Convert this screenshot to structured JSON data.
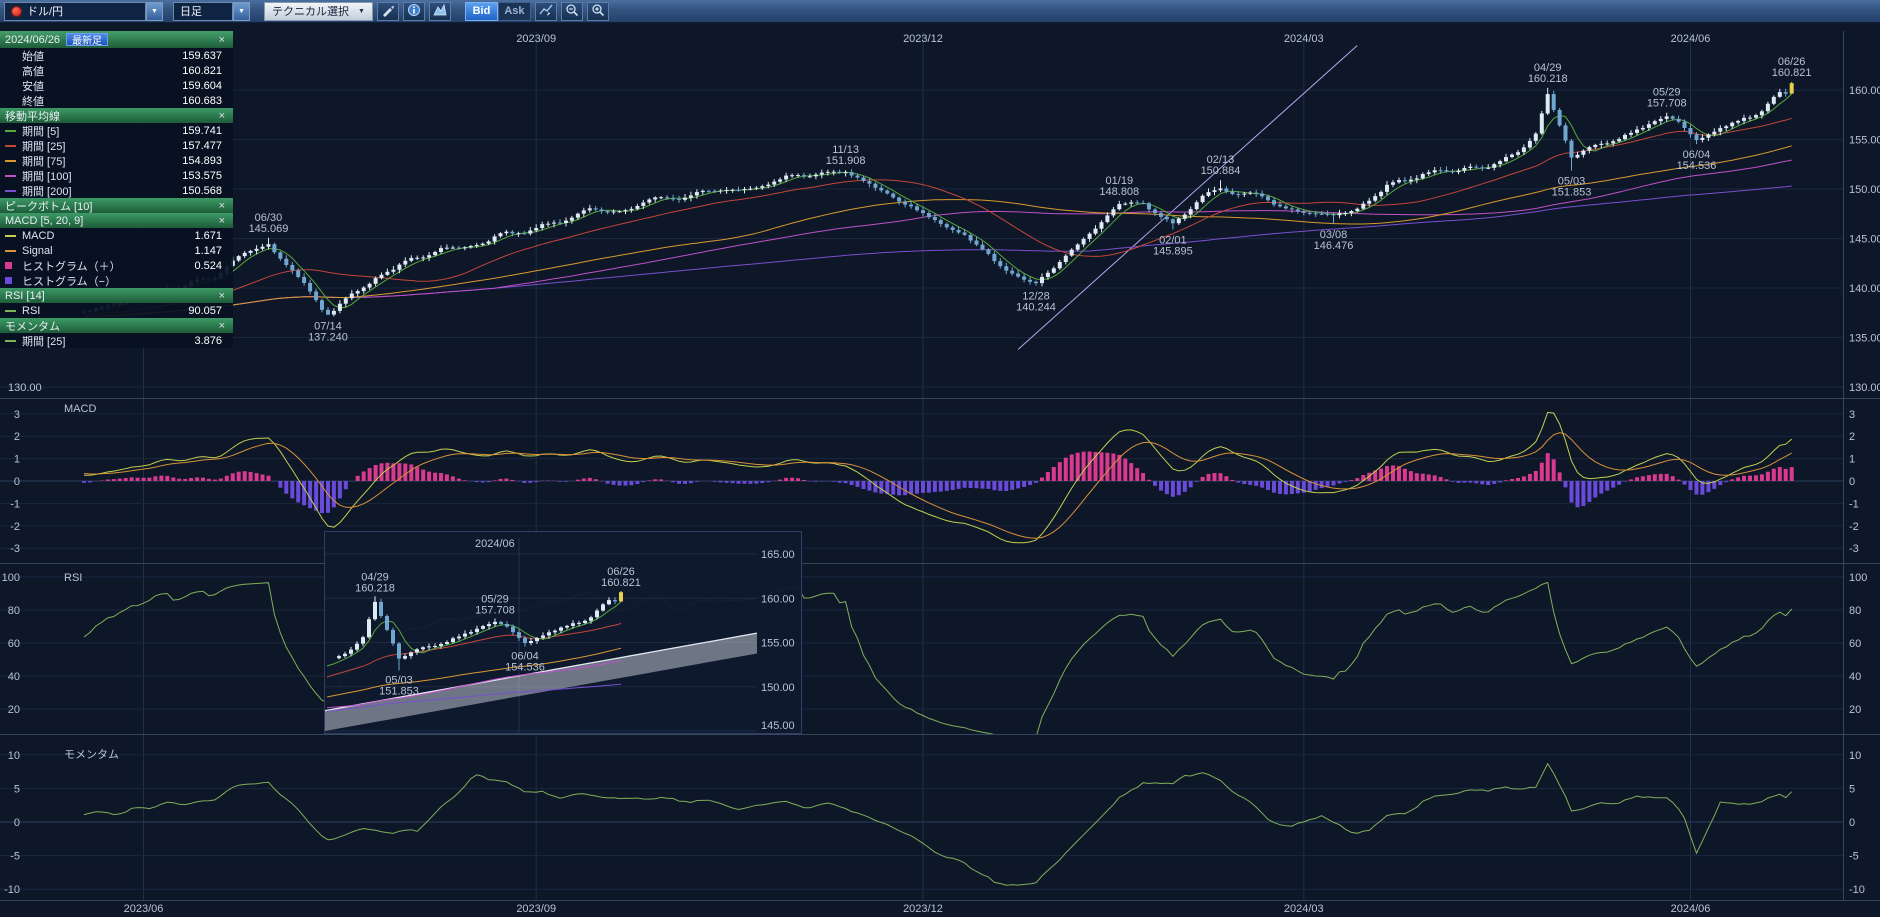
{
  "toolbar": {
    "pair": "ドル/円",
    "timeframe": "日足",
    "technical_select": "テクニカル選択",
    "bid": "Bid",
    "ask": "Ask",
    "caret": "▼",
    "icons": [
      "pencil-icon",
      "info-icon",
      "area-chart-icon",
      "line-chart-icon",
      "zoom-out-icon",
      "zoom-in-icon"
    ]
  },
  "indicator_panel": {
    "date": "2024/06/26",
    "badge": "最新足",
    "close_glyph": "×",
    "ohlc_rows": [
      {
        "label": "始値",
        "value": "159.637"
      },
      {
        "label": "高値",
        "value": "160.821"
      },
      {
        "label": "安値",
        "value": "159.604"
      },
      {
        "label": "終値",
        "value": "160.683"
      }
    ],
    "sections": [
      {
        "title": "移動平均線",
        "rows": [
          {
            "label": "期間 [5]",
            "value": "159.741",
            "color": "#55a83a"
          },
          {
            "label": "期間 [25]",
            "value": "157.477",
            "color": "#c4463a"
          },
          {
            "label": "期間 [75]",
            "value": "154.893",
            "color": "#d9992f"
          },
          {
            "label": "期間 [100]",
            "value": "153.575",
            "color": "#c050c8"
          },
          {
            "label": "期間 [200]",
            "value": "150.568",
            "color": "#7a4fd0"
          }
        ]
      },
      {
        "title": "ピークボトム [10]",
        "rows": []
      },
      {
        "title": "MACD [5, 20, 9]",
        "rows": [
          {
            "label": "MACD",
            "value": "1.671",
            "color": "#c3cf4e"
          },
          {
            "label": "Signal",
            "value": "1.147",
            "color": "#d9913a"
          },
          {
            "label": "ヒストグラム（＋）",
            "value": "0.524",
            "color": "#d93a8f",
            "swatch": "box"
          },
          {
            "label": "ヒストグラム（−）",
            "value": "",
            "color": "#6a4ad9",
            "swatch": "box"
          }
        ]
      },
      {
        "title": "RSI [14]",
        "rows": [
          {
            "label": "RSI",
            "value": "90.057",
            "color": "#7fb05a"
          }
        ]
      },
      {
        "title": "モメンタム",
        "rows": [
          {
            "label": "期間 [25]",
            "value": "3.876",
            "color": "#7fb05a"
          }
        ]
      }
    ]
  },
  "chart_data": {
    "type": "candlestick",
    "symbol": "ドル/円",
    "interval": "日足",
    "latest": {
      "date": "2024/06/26",
      "open": 159.637,
      "high": 160.821,
      "low": 159.604,
      "close": 160.683
    },
    "price_ticks": [
      160,
      155,
      150,
      145,
      140,
      135,
      130
    ],
    "left_price_label": "130.00",
    "months": [
      {
        "label": "2023/06",
        "i": 10,
        "show_top": false
      },
      {
        "label": "2023/09",
        "i": 76,
        "show_top": true
      },
      {
        "label": "2023/12",
        "i": 141,
        "show_top": true
      },
      {
        "label": "2024/03",
        "i": 205,
        "show_top": true
      },
      {
        "label": "2024/06",
        "i": 270,
        "show_top": true
      }
    ],
    "anchors": [
      [
        0,
        138.0
      ],
      [
        6,
        138.8
      ],
      [
        10,
        139.4
      ],
      [
        16,
        139.9
      ],
      [
        22,
        141.3
      ],
      [
        27,
        143.5
      ],
      [
        31,
        144.9
      ],
      [
        35,
        141.9
      ],
      [
        41,
        137.6
      ],
      [
        46,
        139.6
      ],
      [
        53,
        142.3
      ],
      [
        60,
        144.3
      ],
      [
        68,
        144.9
      ],
      [
        75,
        146.0
      ],
      [
        82,
        147.3
      ],
      [
        90,
        147.9
      ],
      [
        96,
        149.2
      ],
      [
        103,
        149.6
      ],
      [
        110,
        150.3
      ],
      [
        118,
        151.2
      ],
      [
        123,
        151.4
      ],
      [
        128,
        151.6
      ],
      [
        132,
        150.6
      ],
      [
        137,
        148.6
      ],
      [
        142,
        147.3
      ],
      [
        148,
        145.4
      ],
      [
        153,
        142.9
      ],
      [
        157,
        141.6
      ],
      [
        160,
        140.8
      ],
      [
        163,
        142.2
      ],
      [
        168,
        144.9
      ],
      [
        174,
        148.2
      ],
      [
        178,
        148.5
      ],
      [
        183,
        146.4
      ],
      [
        187,
        148.3
      ],
      [
        191,
        150.3
      ],
      [
        195,
        149.6
      ],
      [
        200,
        148.3
      ],
      [
        205,
        147.5
      ],
      [
        210,
        147.1
      ],
      [
        214,
        148.3
      ],
      [
        219,
        150.1
      ],
      [
        225,
        151.3
      ],
      [
        230,
        151.7
      ],
      [
        236,
        152.5
      ],
      [
        241,
        153.9
      ],
      [
        244,
        155.8
      ],
      [
        246,
        159.5
      ],
      [
        248,
        156.0
      ],
      [
        250,
        152.8
      ],
      [
        252,
        153.6
      ],
      [
        255,
        154.7
      ],
      [
        258,
        155.3
      ],
      [
        261,
        156.1
      ],
      [
        264,
        156.9
      ],
      [
        266,
        157.2
      ],
      [
        268,
        156.6
      ],
      [
        271,
        155.1
      ],
      [
        274,
        155.8
      ],
      [
        278,
        156.9
      ],
      [
        282,
        158.2
      ],
      [
        285,
        159.4
      ],
      [
        287,
        160.5
      ]
    ],
    "annotations": [
      {
        "date": "06/30",
        "value": 145.069,
        "i": 31,
        "type": "peak"
      },
      {
        "date": "07/14",
        "value": 137.24,
        "i": 41,
        "type": "bottom"
      },
      {
        "date": "11/13",
        "value": 151.908,
        "i": 128,
        "type": "peak"
      },
      {
        "date": "12/28",
        "value": 140.244,
        "i": 160,
        "type": "bottom"
      },
      {
        "date": "01/19",
        "value": 148.808,
        "i": 174,
        "type": "peak"
      },
      {
        "date": "02/01",
        "value": 145.895,
        "i": 183,
        "type": "bottom"
      },
      {
        "date": "02/13",
        "value": 150.884,
        "i": 191,
        "type": "peak"
      },
      {
        "date": "03/08",
        "value": 146.476,
        "i": 210,
        "type": "bottom"
      },
      {
        "date": "04/29",
        "value": 160.218,
        "i": 246,
        "type": "peak"
      },
      {
        "date": "05/03",
        "value": 151.853,
        "i": 250,
        "type": "bottom"
      },
      {
        "date": "05/29",
        "value": 157.708,
        "i": 266,
        "type": "peak"
      },
      {
        "date": "06/04",
        "value": 154.536,
        "i": 271,
        "type": "bottom"
      },
      {
        "date": "06/26",
        "value": 160.821,
        "i": 287,
        "type": "peak"
      }
    ],
    "indicators": {
      "moving_averages": [
        {
          "period": 5,
          "color": "#55a83a"
        },
        {
          "period": 25,
          "color": "#c4463a"
        },
        {
          "period": 75,
          "color": "#d9992f"
        },
        {
          "period": 100,
          "color": "#c050c8"
        },
        {
          "period": 200,
          "color": "#7a4fd0"
        }
      ],
      "macd": {
        "title": "MACD",
        "fast": 5,
        "slow": 20,
        "signal": 9,
        "ticks": [
          3,
          2,
          1,
          0,
          -1,
          -2,
          -3
        ],
        "line_color": "#c3cf4e",
        "signal_color": "#d9913a",
        "hist_pos": "#d93a8f",
        "hist_neg": "#6a4ad9"
      },
      "rsi": {
        "title": "RSI",
        "period": 14,
        "ticks": [
          100,
          80,
          60,
          40,
          20
        ],
        "color": "#7fb05a"
      },
      "momentum": {
        "title": "モメンタム",
        "period": 25,
        "ticks": [
          10,
          5,
          0,
          -5,
          -10
        ],
        "color": "#7fb05a"
      }
    },
    "trendline": {
      "i1": 157,
      "p1": 133.8,
      "i2": 214,
      "p2": 164.5,
      "color": "#b7a6ea"
    },
    "candle_colors": {
      "up": "#dde9f3",
      "down": "#6fa7d0",
      "latest": "#e6d14e"
    },
    "inset": {
      "title": "2024/06",
      "price_ticks": [
        165,
        160,
        155,
        150,
        145
      ],
      "annotation_dates": [
        "04/29",
        "05/03",
        "05/29",
        "06/04",
        "06/26"
      ]
    }
  }
}
